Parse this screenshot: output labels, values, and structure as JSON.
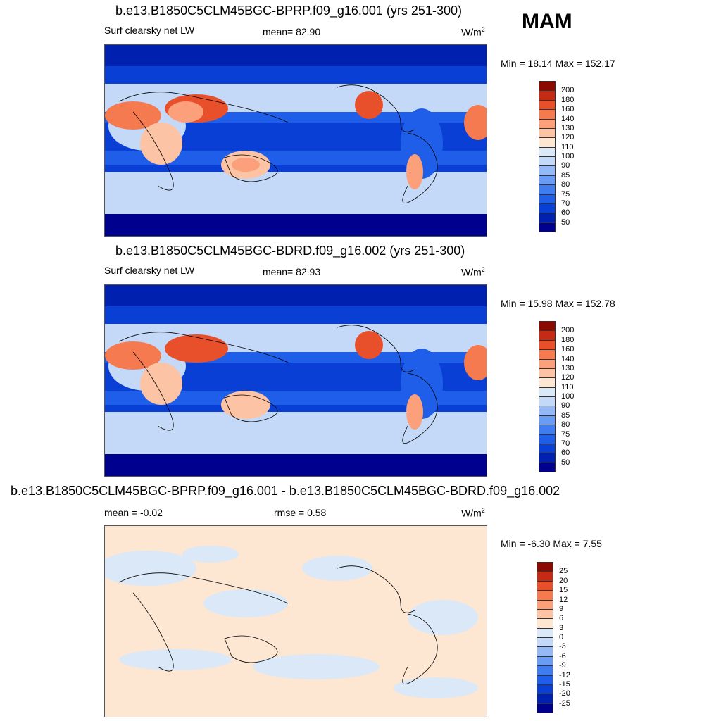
{
  "season": "MAM",
  "units_label": "W/m",
  "units_sup": "2",
  "panels": [
    {
      "title": "b.e13.B1850C5CLM45BGC-BPRP.f09_g16.001 (yrs 251-300)",
      "variable": "Surf clearsky net LW",
      "stat1": "mean=  82.90",
      "stat2": "",
      "minmax": "Min =  18.14 Max = 152.17"
    },
    {
      "title": "b.e13.B1850C5CLM45BGC-BDRD.f09_g16.002 (yrs 251-300)",
      "variable": "Surf clearsky net LW",
      "stat1": "mean=  82.93",
      "stat2": "",
      "minmax": "Min =  15.98 Max = 152.78"
    },
    {
      "title": "b.e13.B1850C5CLM45BGC-BPRP.f09_g16.001 - b.e13.B1850C5CLM45BGC-BDRD.f09_g16.002",
      "variable": "mean =  -0.02",
      "stat1": "rmse =   0.58",
      "stat2": "",
      "minmax": "Min =  -6.30 Max =   7.55"
    }
  ],
  "chart_data": [
    {
      "type": "heatmap",
      "title": "b.e13.B1850C5CLM45BGC-BPRP.f09_g16.001 (yrs 251-300)",
      "variable": "Surf clearsky net LW",
      "units": "W/m2",
      "mean": 82.9,
      "min": 18.14,
      "max": 152.17,
      "colorbar_levels": [
        50,
        60,
        70,
        75,
        80,
        85,
        90,
        100,
        110,
        120,
        130,
        140,
        160,
        180,
        200
      ],
      "colorbar_colors": [
        "#00008f",
        "#0020b0",
        "#0a3fd6",
        "#1f5ee8",
        "#3f7cf0",
        "#6a9bf5",
        "#95b9f7",
        "#c4d9f7",
        "#dbe8f7",
        "#fde6d2",
        "#fcc3a4",
        "#fba07a",
        "#f57a4f",
        "#e8502c",
        "#c42a14",
        "#8b0a00"
      ]
    },
    {
      "type": "heatmap",
      "title": "b.e13.B1850C5CLM45BGC-BDRD.f09_g16.002 (yrs 251-300)",
      "variable": "Surf clearsky net LW",
      "units": "W/m2",
      "mean": 82.93,
      "min": 15.98,
      "max": 152.78,
      "colorbar_levels": [
        50,
        60,
        70,
        75,
        80,
        85,
        90,
        100,
        110,
        120,
        130,
        140,
        160,
        180,
        200
      ],
      "colorbar_colors": [
        "#00008f",
        "#0020b0",
        "#0a3fd6",
        "#1f5ee8",
        "#3f7cf0",
        "#6a9bf5",
        "#95b9f7",
        "#c4d9f7",
        "#dbe8f7",
        "#fde6d2",
        "#fcc3a4",
        "#fba07a",
        "#f57a4f",
        "#e8502c",
        "#c42a14",
        "#8b0a00"
      ]
    },
    {
      "type": "heatmap",
      "title": "b.e13.B1850C5CLM45BGC-BPRP.f09_g16.001 - b.e13.B1850C5CLM45BGC-BDRD.f09_g16.002",
      "units": "W/m2",
      "mean": -0.02,
      "rmse": 0.58,
      "min": -6.3,
      "max": 7.55,
      "colorbar_levels": [
        -25,
        -20,
        -15,
        -12,
        -9,
        -6,
        -3,
        0,
        3,
        6,
        9,
        12,
        15,
        20,
        25
      ],
      "colorbar_colors": [
        "#00008f",
        "#0020b0",
        "#0a3fd6",
        "#1f5ee8",
        "#3f7cf0",
        "#6a9bf5",
        "#95b9f7",
        "#c4d9f7",
        "#dbe8f7",
        "#fde6d2",
        "#fcc3a4",
        "#fba07a",
        "#f57a4f",
        "#e8502c",
        "#c42a14",
        "#8b0a00"
      ]
    }
  ]
}
